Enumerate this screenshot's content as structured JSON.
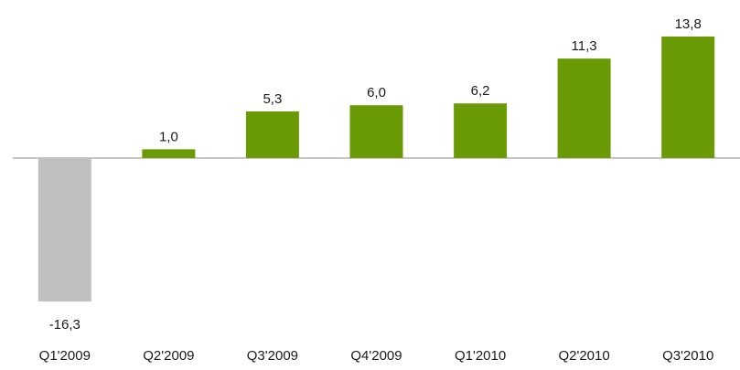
{
  "chart_data": {
    "type": "bar",
    "title": "",
    "xlabel": "",
    "ylabel": "",
    "categories": [
      "Q1'2009",
      "Q2'2009",
      "Q3'2009",
      "Q4'2009",
      "Q1'2010",
      "Q2'2010",
      "Q3'2010"
    ],
    "values": [
      -16.3,
      1.0,
      5.3,
      6.0,
      6.2,
      11.3,
      13.8
    ],
    "value_labels": [
      "-16,3",
      "1,0",
      "5,3",
      "6,0",
      "6,2",
      "11,3",
      "13,8"
    ],
    "ylim": [
      -16.3,
      13.8
    ],
    "grid": false,
    "legend": "none",
    "colors": {
      "positive": "#6a9a06",
      "negative": "#c0c0c0",
      "axis": "#8c8c8c"
    }
  }
}
